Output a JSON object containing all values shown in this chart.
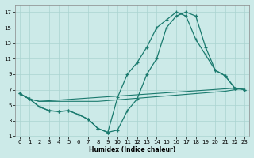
{
  "xlabel": "Humidex (Indice chaleur)",
  "bg_color": "#cceae8",
  "grid_color": "#aad4d0",
  "line_color": "#1a7a6e",
  "xlim": [
    -0.5,
    23.5
  ],
  "ylim": [
    1,
    18
  ],
  "xticks": [
    0,
    1,
    2,
    3,
    4,
    5,
    6,
    7,
    8,
    9,
    10,
    11,
    12,
    13,
    14,
    15,
    16,
    17,
    18,
    19,
    20,
    21,
    22,
    23
  ],
  "yticks": [
    1,
    3,
    5,
    7,
    9,
    11,
    13,
    15,
    17
  ],
  "line1_x": [
    0,
    1,
    2,
    3,
    4,
    5,
    6,
    7,
    8,
    9,
    10,
    11,
    12,
    13,
    14,
    15,
    16,
    17,
    18,
    19,
    20,
    21,
    22,
    23
  ],
  "line1_y": [
    6.5,
    5.8,
    5.5,
    5.5,
    5.5,
    5.5,
    5.5,
    5.5,
    5.5,
    5.6,
    5.7,
    5.8,
    5.9,
    6.0,
    6.1,
    6.2,
    6.3,
    6.4,
    6.5,
    6.6,
    6.7,
    6.8,
    7.0,
    7.2
  ],
  "line2_x": [
    0,
    1,
    2,
    22,
    23
  ],
  "line2_y": [
    6.5,
    5.8,
    5.5,
    7.2,
    7.2
  ],
  "line3_x": [
    0,
    1,
    2,
    3,
    4,
    5,
    6,
    7,
    8,
    9,
    10,
    11,
    12,
    13,
    14,
    15,
    16,
    17,
    18,
    19,
    20,
    21,
    22,
    23
  ],
  "line3_y": [
    6.5,
    5.8,
    4.8,
    4.3,
    4.2,
    4.3,
    3.8,
    3.2,
    2.0,
    1.5,
    1.8,
    4.3,
    5.8,
    9.0,
    11.0,
    15.0,
    16.5,
    17.0,
    16.5,
    12.5,
    9.5,
    8.8,
    7.2,
    7.0
  ],
  "line4_x": [
    0,
    1,
    2,
    3,
    4,
    5,
    6,
    7,
    8,
    9,
    10,
    11,
    12,
    13,
    14,
    15,
    16,
    17,
    18,
    19,
    20,
    21,
    22,
    23
  ],
  "line4_y": [
    6.5,
    5.8,
    4.8,
    4.3,
    4.2,
    4.3,
    3.8,
    3.2,
    2.0,
    1.5,
    6.0,
    9.0,
    10.5,
    12.5,
    15.0,
    16.0,
    17.0,
    16.5,
    13.5,
    11.5,
    9.5,
    8.8,
    7.2,
    7.0
  ]
}
